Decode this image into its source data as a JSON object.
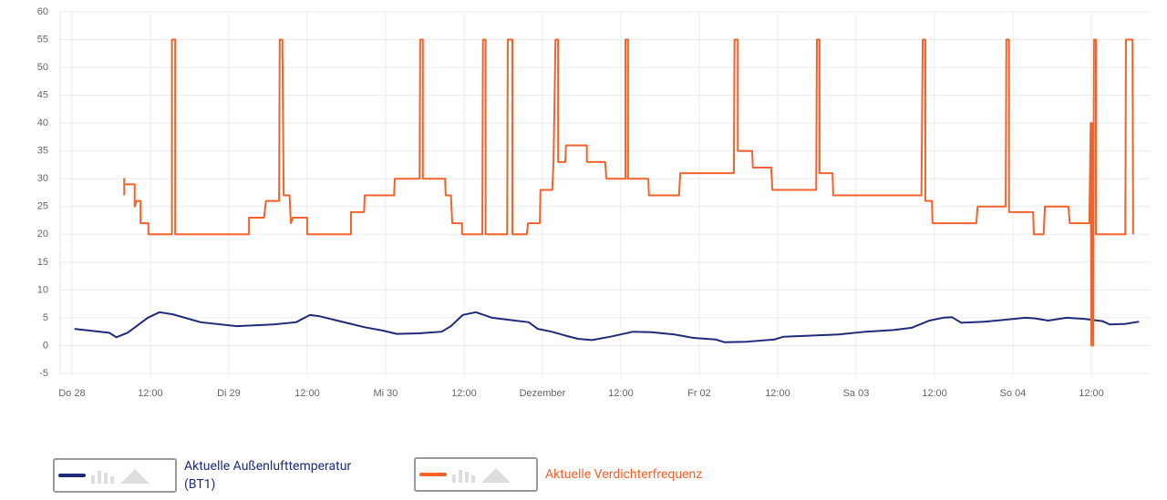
{
  "chart_data": {
    "type": "line",
    "xlim": [
      -1.8,
      165
    ],
    "ylim": [
      -5,
      60
    ],
    "xticks": [
      {
        "value": 0,
        "label": "Do 28"
      },
      {
        "value": 12,
        "label": "12:00"
      },
      {
        "value": 24,
        "label": "Di 29"
      },
      {
        "value": 36,
        "label": "12:00"
      },
      {
        "value": 48,
        "label": "Mi 30"
      },
      {
        "value": 60,
        "label": "12:00"
      },
      {
        "value": 72,
        "label": "Dezember"
      },
      {
        "value": 84,
        "label": "12:00"
      },
      {
        "value": 96,
        "label": "Fr 02"
      },
      {
        "value": 108,
        "label": "12:00"
      },
      {
        "value": 120,
        "label": "Sa 03"
      },
      {
        "value": 132,
        "label": "12:00"
      },
      {
        "value": 144,
        "label": "So 04"
      },
      {
        "value": 156,
        "label": "12:00"
      }
    ],
    "yticks": [
      -5,
      0,
      5,
      10,
      15,
      20,
      25,
      30,
      35,
      40,
      45,
      50,
      55,
      60
    ],
    "grid": true,
    "series": [
      {
        "name": "Aktuelle Außenlufttemperatur (BT1)",
        "color": "#1f2a7a",
        "x": [
          0.4,
          5.7,
          6.8,
          8.5,
          9.9,
          11.6,
          13.4,
          15.5,
          19.7,
          25.2,
          30.8,
          34.3,
          36.4,
          37.8,
          40.6,
          44.8,
          47.6,
          49.7,
          53.1,
          56.6,
          58.0,
          59.8,
          61.8,
          64.3,
          67.1,
          69.9,
          71.3,
          73.4,
          75.5,
          77.5,
          79.6,
          82.4,
          85.9,
          88.7,
          92.2,
          95.0,
          98.5,
          99.9,
          103.3,
          107.5,
          108.9,
          113.1,
          117.3,
          121.5,
          125.7,
          128.5,
          131.2,
          133.3,
          134.7,
          136.1,
          139.6,
          142.4,
          145.9,
          147.3,
          149.4,
          152.2,
          154.9,
          157.7,
          158.8,
          161.2,
          163.3
        ],
        "values": [
          3,
          2.3,
          1.5,
          2.3,
          3.5,
          5,
          6,
          5.6,
          4.2,
          3.5,
          3.8,
          4.2,
          5.5,
          5.3,
          4.5,
          3.3,
          2.7,
          2.1,
          2.2,
          2.5,
          3.5,
          5.5,
          6,
          5,
          4.6,
          4.2,
          3,
          2.5,
          1.8,
          1.2,
          1,
          1.6,
          2.5,
          2.4,
          2,
          1.4,
          1.1,
          0.6,
          0.7,
          1.1,
          1.6,
          1.8,
          2,
          2.5,
          2.8,
          3.2,
          4.5,
          5,
          5.1,
          4.1,
          4.3,
          4.6,
          5,
          4.9,
          4.5,
          5,
          4.8,
          4.4,
          3.8,
          3.9,
          4.3
        ]
      },
      {
        "name": "Aktuelle Verdichterfrequenz",
        "color": "#f4622c",
        "x": [
          8.0,
          8.0,
          8.0,
          9.6,
          9.6,
          9.9,
          10.5,
          10.5,
          11.7,
          11.7,
          15.3,
          15.3,
          15.8,
          15.8,
          27.1,
          27.1,
          29.4,
          29.7,
          31.7,
          31.8,
          32.2,
          32.4,
          33.3,
          33.5,
          33.8,
          36.0,
          36.0,
          42.7,
          42.7,
          44.7,
          44.8,
          49.3,
          49.4,
          53.2,
          53.3,
          53.7,
          53.7,
          57.1,
          57.2,
          58.0,
          58.2,
          59.7,
          59.7,
          62.8,
          62.9,
          63.3,
          63.3,
          66.6,
          66.7,
          67.4,
          67.4,
          69.6,
          69.8,
          71.6,
          71.7,
          73.5,
          73.7,
          74.0,
          74.4,
          74.4,
          75.5,
          75.6,
          78.8,
          78.8,
          81.6,
          81.8,
          84.7,
          84.7,
          85.1,
          85.1,
          88.2,
          88.3,
          92.9,
          93.1,
          101.3,
          101.4,
          101.9,
          101.9,
          104.1,
          104.2,
          107.0,
          107.2,
          113.9,
          114.0,
          114.4,
          114.4,
          116.4,
          116.5,
          130.0,
          130.2,
          130.6,
          130.6,
          131.6,
          131.7,
          138.4,
          138.6,
          142.9,
          143.0,
          143.4,
          143.4,
          147.1,
          147.2,
          148.7,
          148.9,
          152.5,
          152.7,
          155.7,
          155.9,
          156.0,
          156.1,
          156.3,
          156.4,
          156.7,
          156.7,
          161.2,
          161.3,
          162.3,
          162.4
        ],
        "values": [
          27,
          30,
          29,
          29,
          25,
          26,
          26,
          22,
          22,
          20,
          20,
          55,
          55,
          20,
          20,
          23,
          23,
          26,
          26,
          55,
          55,
          27,
          27,
          22,
          23,
          23,
          20,
          20,
          24,
          24,
          27,
          27,
          30,
          30,
          55,
          55,
          30,
          30,
          27,
          27,
          22,
          22,
          20,
          20,
          55,
          55,
          20,
          20,
          55,
          55,
          20,
          20,
          22,
          22,
          28,
          28,
          33,
          55,
          55,
          33,
          33,
          36,
          36,
          33,
          33,
          30,
          30,
          55,
          55,
          30,
          30,
          27,
          27,
          31,
          31,
          55,
          55,
          35,
          35,
          32,
          32,
          28,
          28,
          55,
          55,
          31,
          31,
          27,
          27,
          55,
          55,
          26,
          26,
          22,
          22,
          25,
          25,
          55,
          55,
          24,
          24,
          20,
          20,
          25,
          25,
          22,
          22,
          40,
          0,
          40,
          0,
          55,
          55,
          20,
          20,
          55,
          55,
          20
        ]
      }
    ]
  }
}
